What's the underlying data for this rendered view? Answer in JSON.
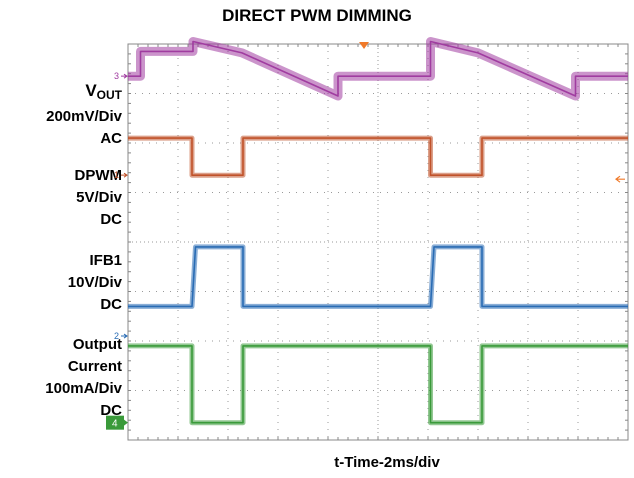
{
  "chart_data": {
    "type": "line",
    "title": "DIRECT PWM DIMMING",
    "xlabel": "t-Time-2ms/div",
    "time_per_div_ms": 2,
    "divisions": {
      "x": 10,
      "y": 8
    },
    "xlim_div": [
      0,
      10
    ],
    "grid": true,
    "trigger_marker": "top",
    "series": [
      {
        "id": "vout",
        "channel": "3",
        "name": "VOUT",
        "label_main": "V",
        "label_sub": "OUT",
        "scale": "200mV/Div",
        "coupling": "AC",
        "color": "#a03ca0",
        "x": [
          0,
          0.25,
          0.25,
          1.3,
          1.3,
          2.28,
          4.2,
          4.2,
          5.0,
          5.0,
          6.05,
          6.05,
          7.0,
          8.95,
          8.95,
          10.0
        ],
        "y": [
          3.35,
          3.35,
          3.85,
          3.85,
          4.05,
          3.82,
          2.95,
          3.35,
          3.35,
          3.35,
          3.35,
          4.05,
          3.82,
          2.95,
          3.35,
          3.35
        ]
      },
      {
        "id": "dpwm",
        "channel": "1",
        "name": "DPWM",
        "scale": "5V/Div",
        "coupling": "DC",
        "color": "#c0522a",
        "x": [
          0,
          0.25,
          0.25,
          1.28,
          1.28,
          2.3,
          2.3,
          5.0,
          5.0,
          6.05,
          6.05,
          7.08,
          7.08,
          10.0
        ],
        "y": [
          2.1,
          2.1,
          2.1,
          2.1,
          1.35,
          1.35,
          2.1,
          2.1,
          2.1,
          2.1,
          1.35,
          1.35,
          2.1,
          2.1
        ]
      },
      {
        "id": "ifb1",
        "channel": "2",
        "name": "IFB1",
        "scale": "10V/Div",
        "coupling": "DC",
        "color": "#2a6cb4",
        "x": [
          0,
          0.25,
          0.25,
          1.28,
          1.35,
          2.3,
          2.3,
          5.0,
          5.0,
          6.05,
          6.12,
          7.08,
          7.08,
          10.0
        ],
        "y": [
          -1.3,
          -1.3,
          -1.3,
          -1.3,
          -0.1,
          -0.1,
          -1.3,
          -1.3,
          -1.3,
          -1.3,
          -0.1,
          -0.1,
          -1.3,
          -1.3
        ]
      },
      {
        "id": "output_current",
        "channel": "4",
        "name": "Output Current",
        "scale": "100mA/Div",
        "coupling": "DC",
        "color": "#3a9a3a",
        "x": [
          0,
          0.25,
          0.25,
          1.28,
          1.28,
          2.3,
          2.3,
          5.0,
          5.0,
          6.05,
          6.05,
          7.08,
          7.08,
          10.0
        ],
        "y": [
          -2.1,
          -2.1,
          -2.1,
          -2.1,
          -3.65,
          -3.65,
          -2.1,
          -2.1,
          -2.1,
          -2.1,
          -3.65,
          -3.65,
          -2.1,
          -2.1
        ]
      }
    ]
  },
  "labels": {
    "vout_main": "V",
    "vout_sub": "OUT",
    "vout_scale": "200mV/Div",
    "vout_coupling": "AC",
    "dpwm_name": "DPWM",
    "dpwm_scale": "5V/Div",
    "dpwm_coupling": "DC",
    "ifb1_name": "IFB1",
    "ifb1_scale": "10V/Div",
    "ifb1_coupling": "DC",
    "iout_name_1": "Output",
    "iout_name_2": "Current",
    "iout_scale": "100mA/Div",
    "iout_coupling": "DC"
  },
  "colors": {
    "grid_frame": "#888888",
    "grid_dots": "#9a9a9a",
    "trigger": "#f07a2a",
    "ch1": "#c0522a",
    "ch2": "#2a6cb4",
    "ch3": "#a03ca0",
    "ch4": "#3a9a3a"
  }
}
